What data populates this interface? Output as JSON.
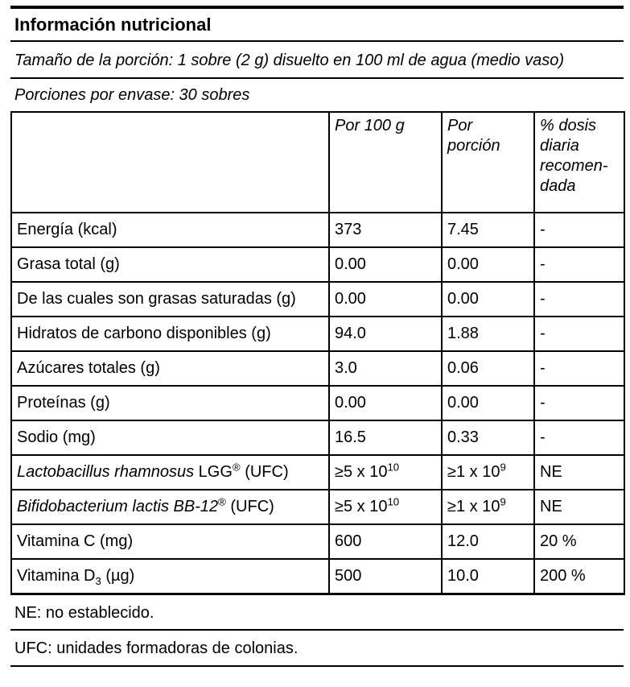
{
  "colors": {
    "text": "#000000",
    "background": "#ffffff",
    "rule": "#000000"
  },
  "header": {
    "title": "Información nutricional",
    "serving_size": "Tamaño de la porción: 1 sobre (2 g) disuelto en 100 ml de agua (medio vaso)",
    "servings_per_container": "Porciones por envase: 30 sobres"
  },
  "table": {
    "columns": [
      {
        "key": "label",
        "label": "",
        "italic": false
      },
      {
        "key": "per_100g",
        "label": "Por 100 g",
        "italic": true
      },
      {
        "key": "per_portion",
        "label": "Por\nporción",
        "italic": true
      },
      {
        "key": "pct_daily",
        "label": "% dosis\ndiaria\nrecomen-\ndada",
        "italic": true
      }
    ],
    "rows": [
      {
        "label": [
          {
            "t": "Energía (kcal)"
          }
        ],
        "per_100g": [
          {
            "t": "373"
          }
        ],
        "per_portion": [
          {
            "t": "7.45"
          }
        ],
        "pct_daily": [
          {
            "t": "-"
          }
        ]
      },
      {
        "label": [
          {
            "t": "Grasa total (g)"
          }
        ],
        "per_100g": [
          {
            "t": "0.00"
          }
        ],
        "per_portion": [
          {
            "t": "0.00"
          }
        ],
        "pct_daily": [
          {
            "t": "-"
          }
        ]
      },
      {
        "label": [
          {
            "t": "De las cuales son grasas saturadas (g)"
          }
        ],
        "per_100g": [
          {
            "t": "0.00"
          }
        ],
        "per_portion": [
          {
            "t": "0.00"
          }
        ],
        "pct_daily": [
          {
            "t": "-"
          }
        ]
      },
      {
        "label": [
          {
            "t": "Hidratos de carbono disponibles (g)"
          }
        ],
        "per_100g": [
          {
            "t": "94.0"
          }
        ],
        "per_portion": [
          {
            "t": "1.88"
          }
        ],
        "pct_daily": [
          {
            "t": "-"
          }
        ]
      },
      {
        "label": [
          {
            "t": "Azúcares totales (g)"
          }
        ],
        "per_100g": [
          {
            "t": "3.0"
          }
        ],
        "per_portion": [
          {
            "t": "0.06"
          }
        ],
        "pct_daily": [
          {
            "t": "-"
          }
        ]
      },
      {
        "label": [
          {
            "t": "Proteínas (g)"
          }
        ],
        "per_100g": [
          {
            "t": "0.00"
          }
        ],
        "per_portion": [
          {
            "t": "0.00"
          }
        ],
        "pct_daily": [
          {
            "t": "-"
          }
        ]
      },
      {
        "label": [
          {
            "t": "Sodio (mg)"
          }
        ],
        "per_100g": [
          {
            "t": "16.5"
          }
        ],
        "per_portion": [
          {
            "t": "0.33"
          }
        ],
        "pct_daily": [
          {
            "t": "-"
          }
        ]
      },
      {
        "label": [
          {
            "t": "Lactobacillus rhamnosus",
            "i": true
          },
          {
            "t": " LGG"
          },
          {
            "t": "®",
            "v": "sup"
          },
          {
            "t": " (UFC)"
          }
        ],
        "per_100g": [
          {
            "t": "≥5 x 10"
          },
          {
            "t": "10",
            "v": "sup"
          }
        ],
        "per_portion": [
          {
            "t": "≥1 x 10"
          },
          {
            "t": "9",
            "v": "sup"
          }
        ],
        "pct_daily": [
          {
            "t": "NE"
          }
        ]
      },
      {
        "label": [
          {
            "t": "Bifidobacterium lactis BB-12",
            "i": true
          },
          {
            "t": "®",
            "v": "sup"
          },
          {
            "t": " (UFC)"
          }
        ],
        "per_100g": [
          {
            "t": "≥5 x 10"
          },
          {
            "t": "10",
            "v": "sup"
          }
        ],
        "per_portion": [
          {
            "t": "≥1 x 10"
          },
          {
            "t": "9",
            "v": "sup"
          }
        ],
        "pct_daily": [
          {
            "t": "NE"
          }
        ]
      },
      {
        "label": [
          {
            "t": "Vitamina C (mg)"
          }
        ],
        "per_100g": [
          {
            "t": "600"
          }
        ],
        "per_portion": [
          {
            "t": "12.0"
          }
        ],
        "pct_daily": [
          {
            "t": "20 %"
          }
        ]
      },
      {
        "label": [
          {
            "t": "Vitamina D"
          },
          {
            "t": "3",
            "v": "sub"
          },
          {
            "t": " (µg)"
          }
        ],
        "per_100g": [
          {
            "t": "500"
          }
        ],
        "per_portion": [
          {
            "t": "10.0"
          }
        ],
        "pct_daily": [
          {
            "t": "200 %"
          }
        ]
      }
    ]
  },
  "footnotes": [
    "NE: no establecido.",
    "UFC: unidades formadoras de colonias."
  ]
}
